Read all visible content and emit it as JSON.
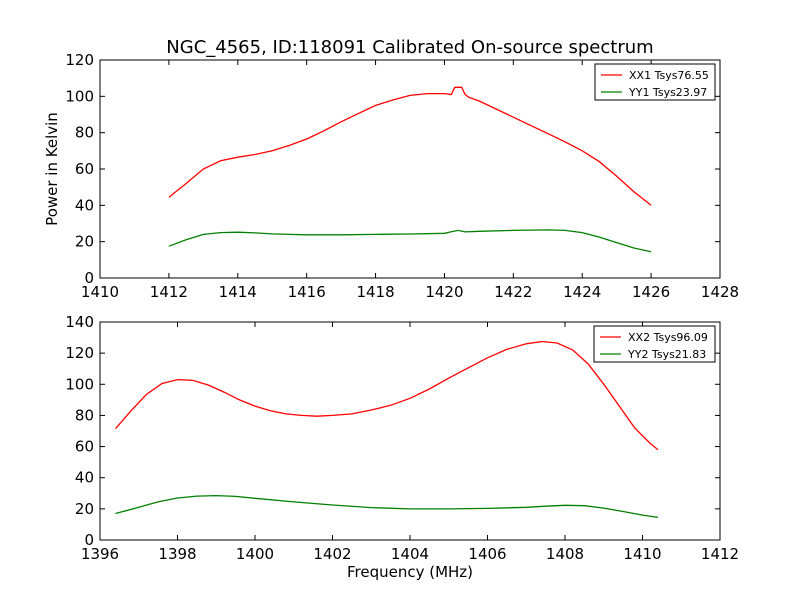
{
  "figure_title": "NGC_4565, ID:118091 Calibrated On-source spectrum",
  "chart_data": [
    {
      "type": "line",
      "ylabel": "Power in Kelvin",
      "xlabel": "",
      "xlim": [
        1410,
        1428
      ],
      "ylim": [
        0,
        120
      ],
      "xticks": [
        "1410",
        "1412",
        "1414",
        "1416",
        "1418",
        "1420",
        "1422",
        "1424",
        "1426",
        "1428"
      ],
      "yticks": [
        "0",
        "20",
        "40",
        "60",
        "80",
        "100",
        "120"
      ],
      "legend_position": "top-right",
      "series": [
        {
          "name": "XX1 Tsys76.55",
          "color": "#ff0000",
          "x": [
            1412.0,
            1412.5,
            1413.0,
            1413.5,
            1414.0,
            1414.5,
            1415.0,
            1415.5,
            1416.0,
            1416.5,
            1417.0,
            1417.5,
            1418.0,
            1418.5,
            1419.0,
            1419.5,
            1420.0,
            1420.2,
            1420.3,
            1420.5,
            1420.6,
            1420.7,
            1421.0,
            1421.5,
            1422.0,
            1422.5,
            1423.0,
            1423.5,
            1424.0,
            1424.5,
            1425.0,
            1425.5,
            1426.0
          ],
          "y": [
            44.5,
            52,
            60,
            64.5,
            66.5,
            68,
            70,
            73,
            76.5,
            81,
            86,
            90.5,
            95,
            98,
            100.5,
            101.5,
            101.5,
            101,
            105,
            105,
            101,
            99.5,
            97.5,
            93,
            88.5,
            84,
            79.5,
            75,
            70,
            64,
            56,
            47.5,
            40
          ]
        },
        {
          "name": "YY1 Tsys23.97",
          "color": "#008000",
          "x": [
            1412.0,
            1412.5,
            1413.0,
            1413.5,
            1414.0,
            1414.5,
            1415.0,
            1415.5,
            1416.0,
            1417.0,
            1418.0,
            1419.0,
            1420.0,
            1420.2,
            1420.4,
            1420.6,
            1421.0,
            1422.0,
            1423.0,
            1423.5,
            1424.0,
            1424.5,
            1425.0,
            1425.5,
            1426.0
          ],
          "y": [
            17.5,
            21,
            24,
            25,
            25.2,
            24.8,
            24.3,
            24,
            23.8,
            23.8,
            24,
            24.2,
            24.6,
            25.5,
            26.2,
            25.4,
            25.7,
            26.2,
            26.5,
            26.2,
            25,
            22.5,
            19.5,
            16.5,
            14.5
          ]
        }
      ]
    },
    {
      "type": "line",
      "ylabel": "",
      "xlabel": "Frequency (MHz)",
      "xlim": [
        1396,
        1412
      ],
      "ylim": [
        0,
        140
      ],
      "xticks": [
        "1396",
        "1398",
        "1400",
        "1402",
        "1404",
        "1406",
        "1408",
        "1410",
        "1412"
      ],
      "yticks": [
        "0",
        "20",
        "40",
        "60",
        "80",
        "100",
        "120",
        "140"
      ],
      "legend_position": "top-right",
      "series": [
        {
          "name": "XX2 Tsys96.09",
          "color": "#ff0000",
          "x": [
            1396.4,
            1396.8,
            1397.2,
            1397.6,
            1398.0,
            1398.4,
            1398.8,
            1399.2,
            1399.6,
            1400.0,
            1400.4,
            1400.8,
            1401.2,
            1401.6,
            1402.0,
            1402.5,
            1403.0,
            1403.5,
            1404.0,
            1404.5,
            1405.0,
            1405.5,
            1406.0,
            1406.5,
            1407.0,
            1407.4,
            1407.8,
            1408.2,
            1408.6,
            1409.0,
            1409.4,
            1409.8,
            1410.2,
            1410.4
          ],
          "y": [
            71.5,
            83,
            93.5,
            100.5,
            103,
            102.5,
            99.5,
            95,
            90,
            86,
            83,
            81,
            80,
            79.5,
            80,
            81,
            83.5,
            86.5,
            91,
            97,
            104,
            110.5,
            117,
            122.5,
            126,
            127.5,
            126.5,
            122,
            113,
            100,
            86,
            72,
            62,
            58
          ]
        },
        {
          "name": "YY2 Tsys21.83",
          "color": "#008000",
          "x": [
            1396.4,
            1397.0,
            1397.5,
            1398.0,
            1398.5,
            1399.0,
            1399.5,
            1400.0,
            1401.0,
            1402.0,
            1403.0,
            1404.0,
            1405.0,
            1406.0,
            1407.0,
            1407.5,
            1408.0,
            1408.5,
            1409.0,
            1409.5,
            1410.0,
            1410.4
          ],
          "y": [
            17,
            21,
            24.5,
            27,
            28.2,
            28.5,
            28,
            26.8,
            24.5,
            22.5,
            20.8,
            20,
            20,
            20.3,
            21,
            21.7,
            22.3,
            22,
            20.5,
            18.3,
            16,
            14.5
          ]
        }
      ]
    }
  ]
}
